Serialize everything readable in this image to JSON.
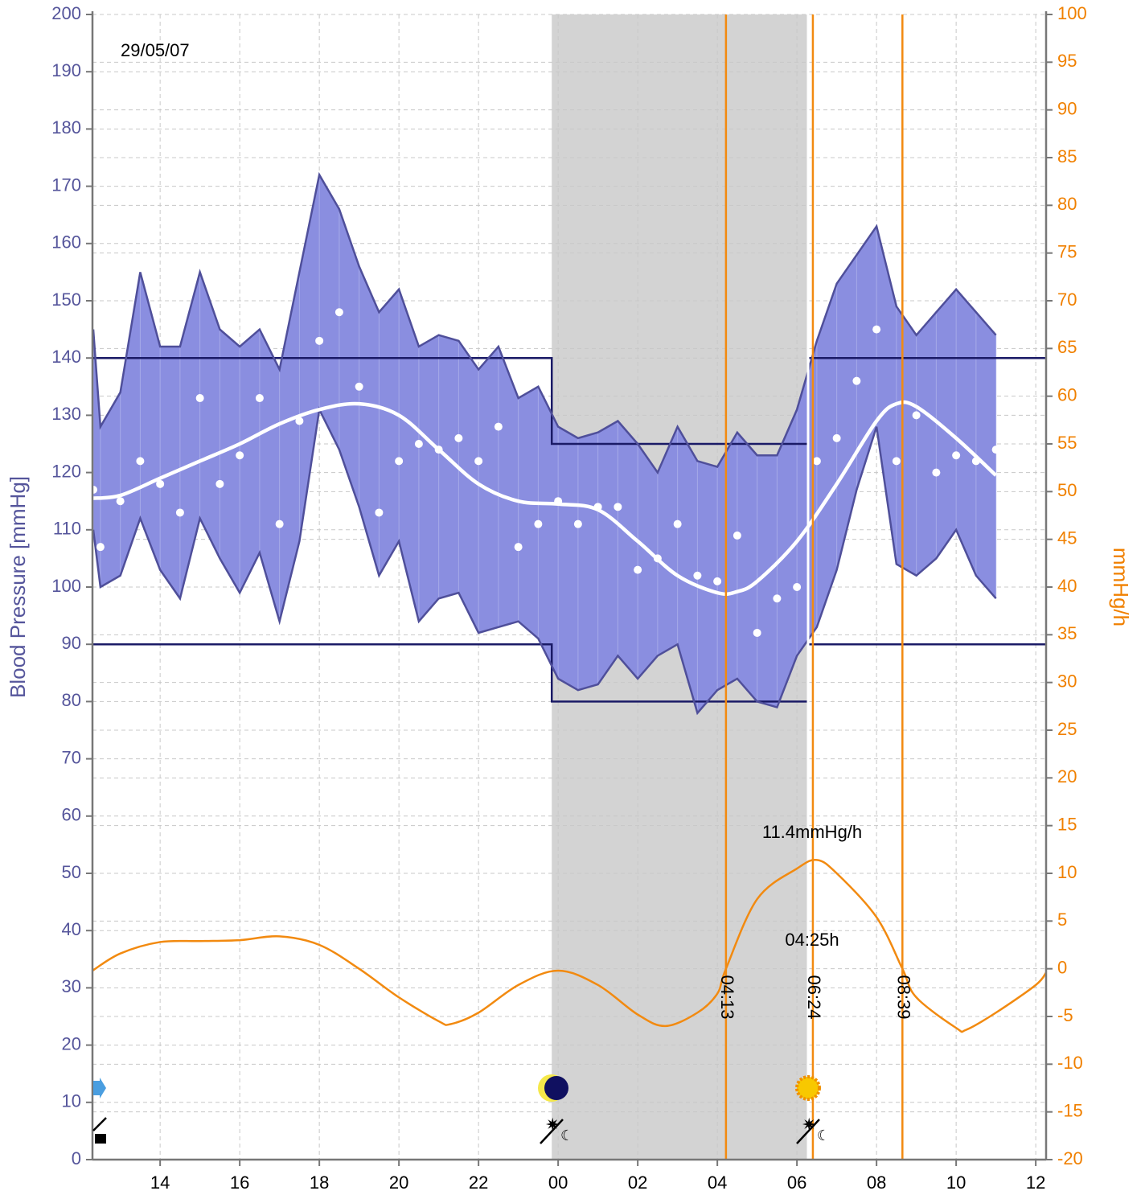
{
  "chart_data": {
    "type": "line",
    "date": "29/05/07",
    "ylabel": "Blood Pressure [mmHg]",
    "y2label": "mmHg/h",
    "x": [
      12.32,
      12.5,
      13,
      13.5,
      14,
      14.5,
      15,
      15.5,
      16,
      16.5,
      17,
      17.5,
      18,
      18.5,
      19,
      19.5,
      20,
      20.5,
      21,
      21.5,
      22,
      22.5,
      23,
      23.5,
      24,
      24.5,
      25,
      25.5,
      26,
      26.5,
      27,
      27.5,
      28,
      28.5,
      29,
      29.5,
      30,
      30.5,
      31,
      31.5,
      32,
      32.5,
      33,
      33.5,
      34,
      34.5,
      35
    ],
    "series": [
      {
        "color": "#4f4f9a",
        "values": [
          145,
          128,
          134,
          155,
          142,
          142,
          155,
          145,
          142,
          145,
          138,
          155,
          172,
          166,
          156,
          148,
          152,
          142,
          144,
          143,
          138,
          142,
          133,
          135,
          128,
          126,
          127,
          129,
          125,
          120,
          128,
          122,
          121,
          127,
          123,
          123,
          131,
          143,
          153,
          158,
          163,
          149,
          144,
          148,
          152,
          148,
          144
        ]
      },
      {
        "color": "#4f4f9a",
        "values": [
          110,
          100,
          102,
          112,
          103,
          98,
          112,
          105,
          99,
          106,
          94,
          108,
          131,
          124,
          114,
          102,
          108,
          94,
          98,
          99,
          92,
          93,
          94,
          91,
          84,
          82,
          83,
          88,
          84,
          88,
          90,
          78,
          82,
          84,
          80,
          79,
          88,
          93,
          103,
          117,
          128,
          104,
          102,
          105,
          110,
          102,
          98
        ]
      },
      {
        "color": "#ffffff",
        "values": [
          117,
          107,
          115,
          122,
          118,
          113,
          133,
          118,
          123,
          133,
          111,
          129,
          143,
          148,
          135,
          113,
          122,
          125,
          124,
          126,
          122,
          128,
          107,
          111,
          115,
          111,
          114,
          114,
          103,
          105,
          111,
          102,
          101,
          109,
          92,
          98,
          100,
          122,
          126,
          136,
          145,
          122,
          130,
          120,
          123,
          122,
          124
        ]
      }
    ],
    "area_color": "#8a8ee0",
    "trend": {
      "color": "#ffffff",
      "x": [
        12.3,
        13,
        14,
        15,
        16,
        17,
        18,
        19,
        20,
        21,
        22,
        23,
        24,
        25,
        26,
        27,
        28,
        28.5,
        29,
        30,
        31,
        32,
        32.5,
        33,
        34,
        35
      ],
      "values": [
        115.5,
        116,
        119,
        122,
        125,
        128.5,
        131,
        132,
        130,
        124,
        118,
        115,
        114.5,
        113.5,
        108,
        102,
        99,
        99.2,
        101,
        108,
        118,
        129,
        132,
        131.5,
        126,
        119.5
      ]
    },
    "rate": {
      "color": "#f28a10",
      "axis": "y2",
      "x": [
        12.3,
        13,
        14,
        15,
        16,
        17,
        18,
        19,
        20,
        21,
        21.3,
        22,
        23,
        24,
        25,
        26,
        26.7,
        27.5,
        28,
        28.2167,
        29,
        30,
        30.5,
        31,
        32,
        32.65,
        33,
        34,
        34.25,
        35,
        36,
        36.26
      ],
      "values": [
        -0.2,
        1.6,
        2.8,
        2.9,
        3,
        3.4,
        2.5,
        0,
        -3,
        -5.5,
        -5.8,
        -4.6,
        -1.7,
        -0.2,
        -1.7,
        -4.8,
        -6,
        -4.6,
        -2.6,
        0,
        7.3,
        10.5,
        11.4,
        10,
        5.4,
        0,
        -3,
        -6.2,
        -6.4,
        -4.6,
        -1.7,
        -0.4
      ]
    },
    "night_period": [
      23.84,
      30.28
    ],
    "night_color": "#d3d3d3",
    "day_limits": [
      90,
      140
    ],
    "night_limits": [
      80,
      125
    ],
    "limit_color": "#1a1a66",
    "markers": [
      {
        "value": 28.2167,
        "label": "04:13"
      },
      {
        "value": 30.4,
        "label": "06:24"
      },
      {
        "value": 32.65,
        "label": "08:39"
      }
    ],
    "marker_color": "#f28a10",
    "annotations": [
      "11.4mmHg/h",
      "04:25h"
    ],
    "xlim": [
      12.3,
      36.26
    ],
    "xticks": [
      14,
      16,
      18,
      20,
      22,
      {
        "value": 24,
        "label": "00"
      },
      {
        "value": 26,
        "label": "02"
      },
      {
        "value": 28,
        "label": "04"
      },
      {
        "value": 30,
        "label": "06"
      },
      {
        "value": 32,
        "label": "08"
      },
      {
        "value": 34,
        "label": "10"
      },
      {
        "value": 36,
        "label": "12"
      }
    ],
    "ylim": [
      0,
      200
    ],
    "yticks": [
      0,
      10,
      20,
      30,
      40,
      50,
      60,
      70,
      80,
      90,
      100,
      110,
      120,
      130,
      140,
      150,
      160,
      170,
      180,
      190,
      200
    ],
    "y2lim": [
      -20,
      100
    ],
    "y2ticks": [
      -20,
      -15,
      -10,
      -5,
      0,
      5,
      10,
      15,
      20,
      25,
      30,
      35,
      40,
      45,
      50,
      55,
      60,
      65,
      70,
      75,
      80,
      85,
      90,
      95,
      100
    ],
    "grid": true
  }
}
